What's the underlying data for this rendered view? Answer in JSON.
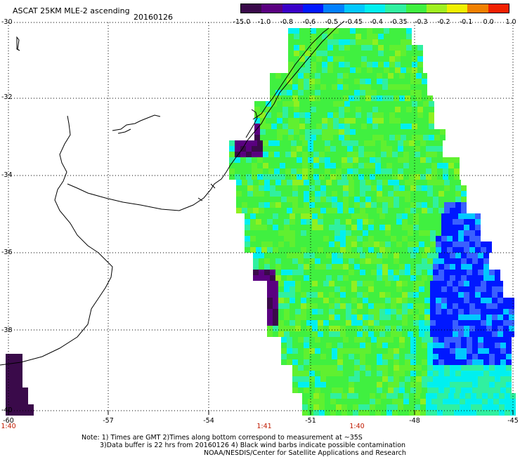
{
  "header": {
    "title": "ASCAT 25KM MLE-2 ascending",
    "date": "20160126"
  },
  "colorbar": {
    "labels": [
      "-15.0",
      "-1.0",
      "-0.8",
      "-0.6",
      "-0.5",
      "-0.45",
      "-0.4",
      "-0.35",
      "-0.3",
      "-0.2",
      "-0.1",
      "0.0",
      "1.0"
    ],
    "colors": [
      "#3a0a4a",
      "#5a0080",
      "#3a00c8",
      "#0018ff",
      "#0080ff",
      "#00c8ff",
      "#00f0f0",
      "#30f0a0",
      "#40f040",
      "#a0f020",
      "#f0f000",
      "#f08000",
      "#f02000"
    ]
  },
  "axes": {
    "y_labels": [
      "-30",
      "-32",
      "-34",
      "-36",
      "-38",
      "-40"
    ],
    "x_labels": [
      "-60",
      "-57",
      "-54",
      "-51",
      "-48",
      "-45"
    ],
    "time_labels": [
      "1:40",
      "1:41",
      "1:40"
    ]
  },
  "footer": {
    "note_line1": "Note: 1) Times are GMT 2)Times along bottom correspond to measurement at ~35S",
    "note_line2": "3)Data buffer is 22 hrs from 20160126 4) Black wind barbs indicate possible contamination",
    "credit": "NOAA/NESDIS/Center for Satellite Applications and Research"
  }
}
